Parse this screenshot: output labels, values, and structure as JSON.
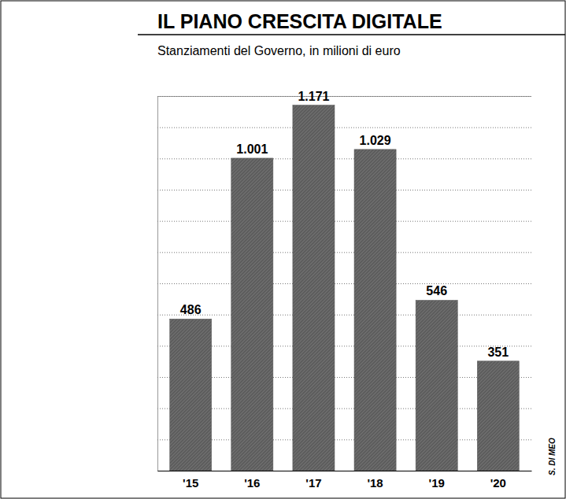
{
  "chart_data": {
    "type": "bar",
    "title": "IL PIANO CRESCITA DIGITALE",
    "subtitle": "Stanziamenti del Governo, in milioni di euro",
    "credit": "S. DI MEO",
    "categories": [
      "'15",
      "'16",
      "'17",
      "'18",
      "'19",
      "'20"
    ],
    "values": [
      486,
      1001,
      1171,
      1029,
      546,
      351
    ],
    "value_labels": [
      "486",
      "1.001",
      "1.171",
      "1.029",
      "546",
      "351"
    ],
    "color": "#5c5c5c",
    "ylim": [
      0,
      1200
    ],
    "yticks": [
      0,
      100,
      200,
      300,
      400,
      500,
      600,
      700,
      800,
      900,
      1000,
      1100,
      1200
    ],
    "grid": true,
    "data_labels": true,
    "tick_labels": "x"
  }
}
